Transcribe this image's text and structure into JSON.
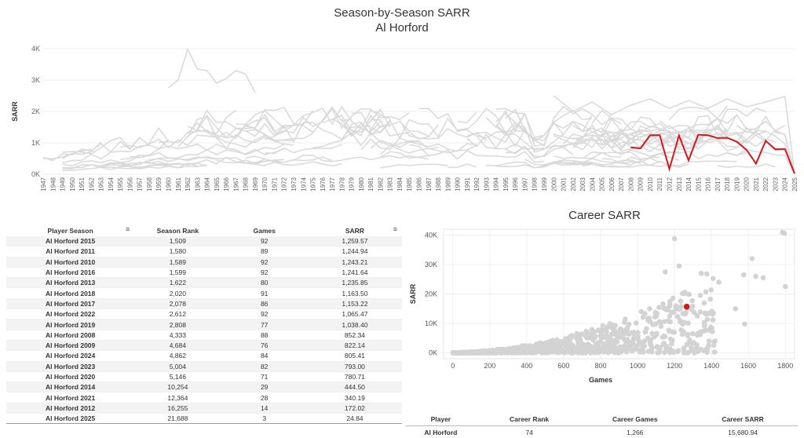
{
  "header": {
    "title": "Season-by-Season SARR",
    "subtitle": "Al Horford",
    "career_title": "Career SARR"
  },
  "colors": {
    "highlight": "#d7161c",
    "background_lines": "#d9d9d9",
    "background_points": "#d3d3d3"
  },
  "season_table": {
    "columns": [
      "Player Season",
      "Season Rank",
      "Games",
      "SARR"
    ],
    "sort_icon": "sort-icon",
    "rows": [
      [
        "Al Horford 2015",
        "1,509",
        "92",
        "1,259.57"
      ],
      [
        "Al Horford 2011",
        "1,580",
        "89",
        "1,244.94"
      ],
      [
        "Al Horford 2010",
        "1,589",
        "92",
        "1,243.21"
      ],
      [
        "Al Horford 2016",
        "1,599",
        "92",
        "1,241.64"
      ],
      [
        "Al Horford 2013",
        "1,622",
        "80",
        "1,235.85"
      ],
      [
        "Al Horford 2018",
        "2,020",
        "91",
        "1,163.50"
      ],
      [
        "Al Horford 2017",
        "2,078",
        "86",
        "1,153.22"
      ],
      [
        "Al Horford 2022",
        "2,612",
        "92",
        "1,065.47"
      ],
      [
        "Al Horford 2019",
        "2,808",
        "77",
        "1,038.40"
      ],
      [
        "Al Horford 2008",
        "4,333",
        "88",
        "852.34"
      ],
      [
        "Al Horford 2009",
        "4,684",
        "76",
        "822.14"
      ],
      [
        "Al Horford 2024",
        "4,862",
        "84",
        "805.41"
      ],
      [
        "Al Horford 2023",
        "5,004",
        "82",
        "793.00"
      ],
      [
        "Al Horford 2020",
        "5,146",
        "71",
        "780.71"
      ],
      [
        "Al Horford 2014",
        "10,254",
        "29",
        "444.50"
      ],
      [
        "Al Horford 2021",
        "12,364",
        "28",
        "340.19"
      ],
      [
        "Al Horford 2012",
        "16,255",
        "14",
        "172.02"
      ],
      [
        "Al Horford 2025",
        "21,688",
        "3",
        "24.84"
      ]
    ]
  },
  "career_table": {
    "columns": [
      "Player",
      "Career Rank",
      "Career Games",
      "Career SARR"
    ],
    "row": [
      "Al Horford",
      "74",
      "1,266",
      "15,680.94"
    ]
  },
  "chart_data": [
    {
      "type": "line",
      "title": "Season-by-Season SARR",
      "subtitle": "Al Horford",
      "xlabel": "",
      "ylabel": "SARR",
      "x_range": [
        1947,
        2025
      ],
      "ylim": [
        0,
        4000
      ],
      "y_ticks": [
        0,
        1000,
        2000,
        3000,
        4000
      ],
      "y_tick_labels": [
        "0K",
        "1K",
        "2K",
        "3K",
        "4K"
      ],
      "grid": true,
      "highlight_series": {
        "name": "Al Horford",
        "x": [
          2008,
          2009,
          2010,
          2011,
          2012,
          2013,
          2014,
          2015,
          2016,
          2017,
          2018,
          2019,
          2020,
          2021,
          2022,
          2023,
          2024,
          2025
        ],
        "values": [
          852.34,
          822.14,
          1243.21,
          1244.94,
          172.02,
          1235.85,
          444.5,
          1259.57,
          1241.64,
          1153.22,
          1163.5,
          1038.4,
          780.71,
          340.19,
          1065.47,
          793.0,
          805.41,
          24.84
        ]
      }
    },
    {
      "type": "scatter",
      "title": "Career SARR",
      "xlabel": "Games",
      "ylabel": "SARR",
      "xlim": [
        -50,
        1850
      ],
      "ylim": [
        -2000,
        42000
      ],
      "x_ticks": [
        0,
        200,
        400,
        600,
        800,
        1000,
        1200,
        1400,
        1600,
        1800
      ],
      "y_ticks": [
        0,
        10000,
        20000,
        30000,
        40000
      ],
      "y_tick_labels": [
        "0K",
        "10K",
        "20K",
        "30K",
        "40K"
      ],
      "grid": true,
      "highlight_point": {
        "name": "Al Horford",
        "x": 1266,
        "y": 15680.94
      },
      "notable_points": [
        {
          "x": 1795,
          "y": 40600
        },
        {
          "x": 1785,
          "y": 40900
        },
        {
          "x": 1200,
          "y": 38800
        },
        {
          "x": 1620,
          "y": 32000
        },
        {
          "x": 1800,
          "y": 22500
        },
        {
          "x": 1575,
          "y": 26500
        },
        {
          "x": 1640,
          "y": 26000
        },
        {
          "x": 1680,
          "y": 25500
        },
        {
          "x": 1440,
          "y": 24000
        },
        {
          "x": 1345,
          "y": 27000
        },
        {
          "x": 1375,
          "y": 26800
        },
        {
          "x": 1225,
          "y": 29500
        },
        {
          "x": 1150,
          "y": 27500
        },
        {
          "x": 1580,
          "y": 9800
        },
        {
          "x": 1530,
          "y": 15000
        }
      ]
    }
  ]
}
